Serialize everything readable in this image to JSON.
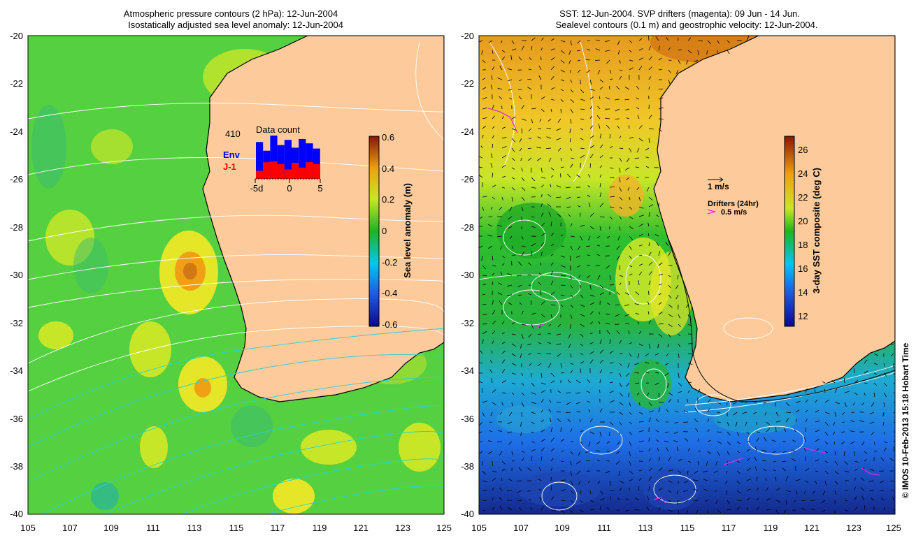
{
  "left_panel": {
    "title_line1": "Atmospheric pressure contours (2 hPa): 12-Jun-2004",
    "title_line2": "Isostatically adjusted sea level anomaly: 12-Jun-2004",
    "y_ticks": [
      "-20",
      "-22",
      "-24",
      "-26",
      "-28",
      "-30",
      "-32",
      "-34",
      "-36",
      "-38",
      "-40"
    ],
    "x_ticks": [
      "105",
      "107",
      "109",
      "111",
      "113",
      "115",
      "117",
      "119",
      "121",
      "123",
      "125"
    ],
    "colorbar": {
      "label": "Sea level anomaly (m)",
      "ticks": [
        "0.6",
        "0.4",
        "0.2",
        "0",
        "-0.2",
        "-0.4",
        "-0.6"
      ]
    },
    "inset": {
      "count": "410",
      "title": "Data count",
      "legend_env": "Env",
      "legend_j1": "J-1",
      "x_ticks": [
        "-5d",
        "0",
        "5"
      ],
      "env_values": [
        0.85,
        0.65,
        1.0,
        0.78,
        0.9,
        0.72,
        0.92,
        0.82,
        0.7
      ],
      "j1_values": [
        0.3,
        0.62,
        0.65,
        0.55,
        0.35,
        0.6,
        0.42,
        0.62,
        0.55
      ]
    },
    "colors": {
      "land": "#FDCB9B",
      "ocean_base": "#55D040",
      "env_bar": "#0000FF",
      "j1_bar": "#FF0000"
    }
  },
  "right_panel": {
    "title_line1": "SST: 12-Jun-2004. SVP drifters (magenta): 09 Jun - 14 Jun.",
    "title_line2": "Sealevel contours (0.1 m) and geostrophic velocity: 12-Jun-2004.",
    "y_ticks": [
      "-20",
      "-22",
      "-24",
      "-26",
      "-28",
      "-30",
      "-32",
      "-34",
      "-36",
      "-38",
      "-40"
    ],
    "x_ticks": [
      "105",
      "107",
      "109",
      "111",
      "113",
      "115",
      "117",
      "119",
      "121",
      "123",
      "125"
    ],
    "colorbar": {
      "label": "3-day SST composite (deg C)",
      "ticks": [
        "26",
        "24",
        "22",
        "20",
        "18",
        "16",
        "14",
        "12"
      ]
    },
    "legend": {
      "velocity": "1 m/s",
      "drifters_title": "Drifters (24hr)",
      "drifters_speed": "0.5 m/s"
    }
  },
  "credit": "© IMOS 10-Feb-2013 15:18 Hobart Time"
}
